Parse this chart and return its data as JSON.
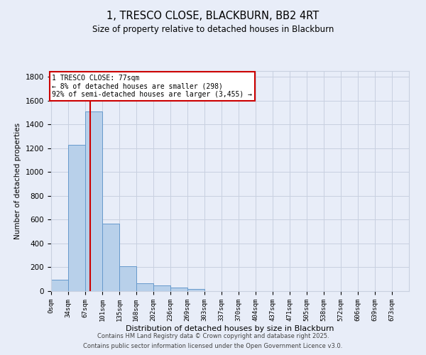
{
  "title": "1, TRESCO CLOSE, BLACKBURN, BB2 4RT",
  "subtitle": "Size of property relative to detached houses in Blackburn",
  "xlabel": "Distribution of detached houses by size in Blackburn",
  "ylabel": "Number of detached properties",
  "bar_labels": [
    "0sqm",
    "34sqm",
    "67sqm",
    "101sqm",
    "135sqm",
    "168sqm",
    "202sqm",
    "236sqm",
    "269sqm",
    "303sqm",
    "337sqm",
    "370sqm",
    "404sqm",
    "437sqm",
    "471sqm",
    "505sqm",
    "538sqm",
    "572sqm",
    "606sqm",
    "639sqm",
    "673sqm"
  ],
  "bar_values": [
    95,
    1230,
    1510,
    565,
    210,
    65,
    45,
    28,
    15,
    0,
    0,
    0,
    0,
    0,
    0,
    0,
    0,
    0,
    0,
    0,
    0
  ],
  "bar_color": "#b8d0ea",
  "bar_edge_color": "#6699cc",
  "property_line_x": 77,
  "property_line_color": "#cc0000",
  "annotation_title": "1 TRESCO CLOSE: 77sqm",
  "annotation_line1": "← 8% of detached houses are smaller (298)",
  "annotation_line2": "92% of semi-detached houses are larger (3,455) →",
  "annotation_box_color": "#ffffff",
  "annotation_box_edge": "#cc0000",
  "ylim": [
    0,
    1850
  ],
  "yticks": [
    0,
    200,
    400,
    600,
    800,
    1000,
    1200,
    1400,
    1600,
    1800
  ],
  "bin_edges": [
    0,
    34,
    67,
    101,
    135,
    168,
    202,
    236,
    269,
    303,
    337,
    370,
    404,
    437,
    471,
    505,
    538,
    572,
    606,
    639,
    673,
    707
  ],
  "footer_line1": "Contains HM Land Registry data © Crown copyright and database right 2025.",
  "footer_line2": "Contains public sector information licensed under the Open Government Licence v3.0.",
  "bg_color": "#e8edf8",
  "grid_color": "#c8d0e0"
}
